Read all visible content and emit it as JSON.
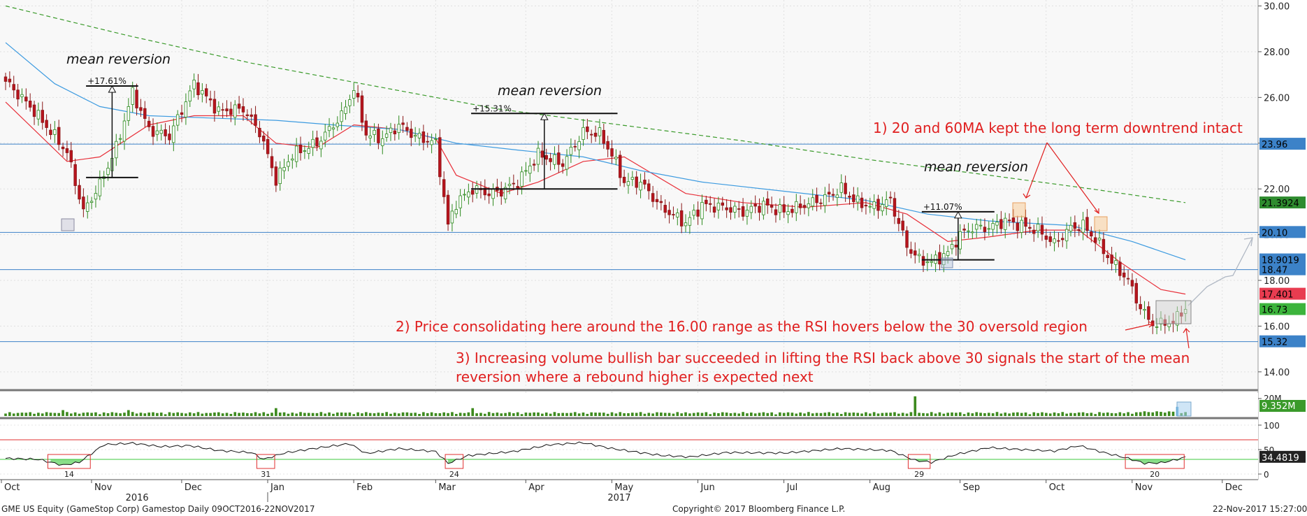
{
  "chart_data": [
    {
      "type": "candlestick",
      "panel": "price",
      "y_axis_ticks": [
        "30.00",
        "28.00",
        "26.00",
        "24.00",
        "22.00",
        "20.00",
        "18.00",
        "16.00",
        "14.00"
      ],
      "ylim": [
        13.2,
        30.2
      ],
      "x_months": [
        "Oct",
        "Nov",
        "Dec",
        "Jan",
        "Feb",
        "Mar",
        "Apr",
        "May",
        "Jun",
        "Jul",
        "Aug",
        "Sep",
        "Oct",
        "Nov",
        "Dec"
      ],
      "x_years": [
        "2016",
        "2017"
      ],
      "anchors": [
        {
          "t": 0,
          "v": 26.7
        },
        {
          "t": 6,
          "v": 25.6
        },
        {
          "t": 12,
          "v": 24.3
        },
        {
          "t": 15,
          "v": 23.6
        },
        {
          "t": 19,
          "v": 21.0
        },
        {
          "t": 23,
          "v": 22.2
        },
        {
          "t": 27,
          "v": 23.8
        },
        {
          "t": 31,
          "v": 26.2
        },
        {
          "t": 35,
          "v": 24.6
        },
        {
          "t": 40,
          "v": 24.3
        },
        {
          "t": 46,
          "v": 26.6
        },
        {
          "t": 52,
          "v": 25.4
        },
        {
          "t": 58,
          "v": 25.5
        },
        {
          "t": 62,
          "v": 24.5
        },
        {
          "t": 66,
          "v": 22.4
        },
        {
          "t": 70,
          "v": 23.5
        },
        {
          "t": 76,
          "v": 24.0
        },
        {
          "t": 82,
          "v": 25.2
        },
        {
          "t": 85,
          "v": 26.4
        },
        {
          "t": 88,
          "v": 24.4
        },
        {
          "t": 92,
          "v": 24.2
        },
        {
          "t": 96,
          "v": 24.8
        },
        {
          "t": 100,
          "v": 24.3
        },
        {
          "t": 105,
          "v": 24.0
        },
        {
          "t": 108,
          "v": 20.4
        },
        {
          "t": 110,
          "v": 21.4
        },
        {
          "t": 114,
          "v": 22.0
        },
        {
          "t": 118,
          "v": 21.8
        },
        {
          "t": 121,
          "v": 21.9
        },
        {
          "t": 125,
          "v": 22.3
        },
        {
          "t": 130,
          "v": 23.5
        },
        {
          "t": 136,
          "v": 23.1
        },
        {
          "t": 141,
          "v": 24.5
        },
        {
          "t": 145,
          "v": 24.4
        },
        {
          "t": 148,
          "v": 23.5
        },
        {
          "t": 151,
          "v": 22.3
        },
        {
          "t": 155,
          "v": 22.3
        },
        {
          "t": 160,
          "v": 21.2
        },
        {
          "t": 166,
          "v": 20.5
        },
        {
          "t": 170,
          "v": 21.3
        },
        {
          "t": 175,
          "v": 21.2
        },
        {
          "t": 180,
          "v": 21.0
        },
        {
          "t": 185,
          "v": 21.3
        },
        {
          "t": 190,
          "v": 21.0
        },
        {
          "t": 195,
          "v": 21.3
        },
        {
          "t": 200,
          "v": 21.6
        },
        {
          "t": 204,
          "v": 22.0
        },
        {
          "t": 208,
          "v": 21.4
        },
        {
          "t": 212,
          "v": 21.2
        },
        {
          "t": 216,
          "v": 21.5
        },
        {
          "t": 220,
          "v": 19.5
        },
        {
          "t": 223,
          "v": 18.9
        },
        {
          "t": 226,
          "v": 18.8
        },
        {
          "t": 230,
          "v": 19.2
        },
        {
          "t": 233,
          "v": 20.0
        },
        {
          "t": 236,
          "v": 20.3
        },
        {
          "t": 240,
          "v": 20.3
        },
        {
          "t": 244,
          "v": 20.6
        },
        {
          "t": 248,
          "v": 20.4
        },
        {
          "t": 252,
          "v": 20.2
        },
        {
          "t": 256,
          "v": 19.6
        },
        {
          "t": 260,
          "v": 20.3
        },
        {
          "t": 263,
          "v": 20.4
        },
        {
          "t": 266,
          "v": 19.8
        },
        {
          "t": 270,
          "v": 18.8
        },
        {
          "t": 274,
          "v": 18.0
        },
        {
          "t": 277,
          "v": 16.8
        },
        {
          "t": 279,
          "v": 16.3
        },
        {
          "t": 281,
          "v": 16.0
        },
        {
          "t": 283,
          "v": 16.2
        },
        {
          "t": 285,
          "v": 16.1
        },
        {
          "t": 287,
          "v": 16.7
        }
      ],
      "moving_averages": [
        {
          "name": "20MA",
          "color": "#e8303a",
          "points": [
            [
              0,
              25.8
            ],
            [
              15,
              23.2
            ],
            [
              23,
              23.4
            ],
            [
              35,
              24.8
            ],
            [
              46,
              25.2
            ],
            [
              58,
              25.2
            ],
            [
              66,
              24.0
            ],
            [
              76,
              23.8
            ],
            [
              85,
              24.8
            ],
            [
              96,
              24.6
            ],
            [
              105,
              24.2
            ],
            [
              110,
              22.6
            ],
            [
              121,
              21.8
            ],
            [
              130,
              22.3
            ],
            [
              141,
              23.2
            ],
            [
              151,
              23.4
            ],
            [
              166,
              21.8
            ],
            [
              180,
              21.4
            ],
            [
              195,
              21.2
            ],
            [
              210,
              21.4
            ],
            [
              220,
              20.9
            ],
            [
              230,
              19.7
            ],
            [
              240,
              19.9
            ],
            [
              252,
              20.2
            ],
            [
              262,
              20.2
            ],
            [
              272,
              18.8
            ],
            [
              282,
              17.6
            ],
            [
              288,
              17.4
            ]
          ]
        },
        {
          "name": "60MA",
          "color": "#3d9be0",
          "points": [
            [
              0,
              28.4
            ],
            [
              12,
              26.6
            ],
            [
              23,
              25.6
            ],
            [
              35,
              25.2
            ],
            [
              50,
              25.1
            ],
            [
              66,
              25.0
            ],
            [
              80,
              24.8
            ],
            [
              96,
              24.6
            ],
            [
              110,
              24.0
            ],
            [
              125,
              23.7
            ],
            [
              141,
              23.4
            ],
            [
              155,
              22.8
            ],
            [
              170,
              22.3
            ],
            [
              190,
              21.9
            ],
            [
              210,
              21.5
            ],
            [
              225,
              20.9
            ],
            [
              240,
              20.6
            ],
            [
              260,
              20.4
            ],
            [
              275,
              19.7
            ],
            [
              288,
              18.9
            ]
          ]
        },
        {
          "name": "200MA",
          "color": "#3a9a2a",
          "points": [
            [
              0,
              30.0
            ],
            [
              30,
              28.7
            ],
            [
              60,
              27.5
            ],
            [
              90,
              26.5
            ],
            [
              120,
              25.5
            ],
            [
              150,
              24.8
            ],
            [
              180,
              24.1
            ],
            [
              210,
              23.3
            ],
            [
              240,
              22.6
            ],
            [
              265,
              22.0
            ],
            [
              288,
              21.4
            ]
          ]
        }
      ],
      "horizontal_levels": [
        23.96,
        20.1,
        18.47,
        15.32
      ],
      "axis_labels": [
        {
          "text": "23.96",
          "value": 23.96,
          "bg": "#3c82c8"
        },
        {
          "text": "21.3924",
          "value": 21.3924,
          "bg": "#2f8c2f"
        },
        {
          "text": "20.10",
          "value": 20.1,
          "bg": "#3c82c8"
        },
        {
          "text": "18.9019",
          "value": 18.9019,
          "bg": "#3c82c8"
        },
        {
          "text": "18.47",
          "value": 18.47,
          "bg": "#3c82c8"
        },
        {
          "text": "17.401",
          "value": 17.401,
          "bg": "#e83c50"
        },
        {
          "text": "16.73",
          "value": 16.73,
          "bg": "#3cb43c"
        },
        {
          "text": "15.32",
          "value": 15.32,
          "bg": "#3c82c8"
        }
      ],
      "measurements": [
        {
          "pct": "+17.61%",
          "label": "mean reversion",
          "t0": 21,
          "t1": 31,
          "lo": 22.5,
          "hi": 26.5
        },
        {
          "pct": "+15.31%",
          "label": "mean reversion",
          "t0": 115,
          "t1": 148,
          "lo": 22.0,
          "hi": 25.3
        },
        {
          "pct": "+11.07%",
          "label": "mean reversion",
          "t0": 225,
          "t1": 240,
          "lo": 18.9,
          "hi": 21.0
        }
      ],
      "annotations": [
        "1) 20 and 60MA kept the long term downtrend intact",
        "2) Price consolidating here around the 16.00 range as the RSI hovers below the 30 oversold region",
        "3) Increasing volume bullish bar succeeded in lifting the RSI back above 30 signals the start of the mean reversion where a rebound higher is expected next"
      ]
    },
    {
      "type": "bar",
      "panel": "volume",
      "axis_tick": "20M",
      "last_value_label": "9.352M",
      "spikes": [
        {
          "t": 14,
          "v": 6
        },
        {
          "t": 30,
          "v": 6
        },
        {
          "t": 66,
          "v": 8
        },
        {
          "t": 114,
          "v": 8
        },
        {
          "t": 222,
          "v": 20
        },
        {
          "t": 286,
          "v": 9.352
        }
      ]
    },
    {
      "type": "line",
      "panel": "rsi",
      "y_axis_ticks": [
        "100",
        "50",
        "0"
      ],
      "ylim": [
        0,
        100
      ],
      "levels": [
        70,
        30
      ],
      "last_value_label": "34.4819",
      "anchors": [
        {
          "t": 0,
          "v": 32
        },
        {
          "t": 8,
          "v": 30
        },
        {
          "t": 14,
          "v": 18
        },
        {
          "t": 18,
          "v": 24
        },
        {
          "t": 24,
          "v": 60
        },
        {
          "t": 31,
          "v": 63
        },
        {
          "t": 38,
          "v": 56
        },
        {
          "t": 45,
          "v": 58
        },
        {
          "t": 52,
          "v": 48
        },
        {
          "t": 60,
          "v": 44
        },
        {
          "t": 63,
          "v": 30
        },
        {
          "t": 68,
          "v": 43
        },
        {
          "t": 75,
          "v": 52
        },
        {
          "t": 84,
          "v": 62
        },
        {
          "t": 88,
          "v": 42
        },
        {
          "t": 96,
          "v": 52
        },
        {
          "t": 105,
          "v": 46
        },
        {
          "t": 108,
          "v": 22
        },
        {
          "t": 113,
          "v": 38
        },
        {
          "t": 124,
          "v": 46
        },
        {
          "t": 133,
          "v": 60
        },
        {
          "t": 141,
          "v": 64
        },
        {
          "t": 148,
          "v": 52
        },
        {
          "t": 160,
          "v": 38
        },
        {
          "t": 167,
          "v": 35
        },
        {
          "t": 176,
          "v": 44
        },
        {
          "t": 190,
          "v": 43
        },
        {
          "t": 204,
          "v": 52
        },
        {
          "t": 216,
          "v": 48
        },
        {
          "t": 222,
          "v": 28
        },
        {
          "t": 226,
          "v": 24
        },
        {
          "t": 232,
          "v": 40
        },
        {
          "t": 240,
          "v": 54
        },
        {
          "t": 248,
          "v": 50
        },
        {
          "t": 256,
          "v": 47
        },
        {
          "t": 262,
          "v": 58
        },
        {
          "t": 268,
          "v": 44
        },
        {
          "t": 274,
          "v": 32
        },
        {
          "t": 278,
          "v": 22
        },
        {
          "t": 282,
          "v": 23
        },
        {
          "t": 285,
          "v": 28
        },
        {
          "t": 288,
          "v": 34.48
        }
      ],
      "oversold_markers": [
        {
          "t0": 11,
          "t1": 20,
          "label": "14"
        },
        {
          "t0": 62,
          "t1": 65,
          "label": "31"
        },
        {
          "t0": 108,
          "t1": 111,
          "label": "24"
        },
        {
          "t0": 221,
          "t1": 225,
          "label": "29"
        },
        {
          "t0": 274,
          "t1": 287,
          "label": "20"
        }
      ]
    }
  ],
  "footer": {
    "left": "GME US Equity (GameStop Corp) Gamestop  Daily 09OCT2016-22NOV2017",
    "center": "Copyright© 2017 Bloomberg Finance L.P.",
    "right": "22-Nov-2017 15:27:00"
  }
}
